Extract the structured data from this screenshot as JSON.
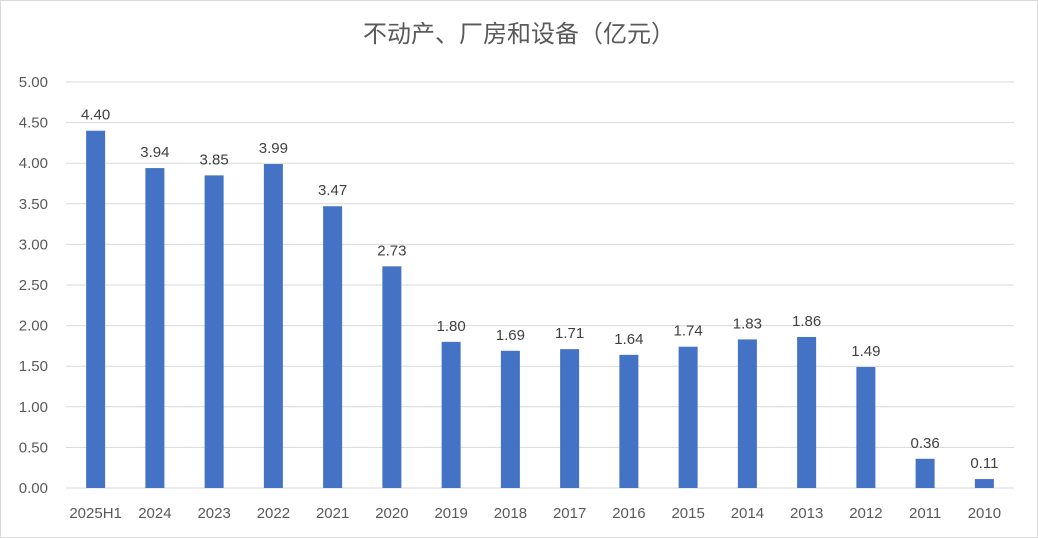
{
  "chart_data": {
    "type": "bar",
    "title": "不动产、厂房和设备（亿元）",
    "xlabel": "",
    "ylabel": "",
    "categories": [
      "2025H1",
      "2024",
      "2023",
      "2022",
      "2021",
      "2020",
      "2019",
      "2018",
      "2017",
      "2016",
      "2015",
      "2014",
      "2013",
      "2012",
      "2011",
      "2010"
    ],
    "values": [
      4.4,
      3.94,
      3.85,
      3.99,
      3.47,
      2.73,
      1.8,
      1.69,
      1.71,
      1.64,
      1.74,
      1.83,
      1.86,
      1.49,
      0.36,
      0.11
    ],
    "data_labels": [
      "4.40",
      "3.94",
      "3.85",
      "3.99",
      "3.47",
      "2.73",
      "1.80",
      "1.69",
      "1.71",
      "1.64",
      "1.74",
      "1.83",
      "1.86",
      "1.49",
      "0.36",
      "0.11"
    ],
    "ylim": [
      0,
      5
    ],
    "yticks": [
      "0.00",
      "0.50",
      "1.00",
      "1.50",
      "2.00",
      "2.50",
      "3.00",
      "3.50",
      "4.00",
      "4.50",
      "5.00"
    ],
    "grid": true,
    "legend": "none",
    "bar_color": "#4472c4",
    "grid_color": "#d9d9d9"
  }
}
